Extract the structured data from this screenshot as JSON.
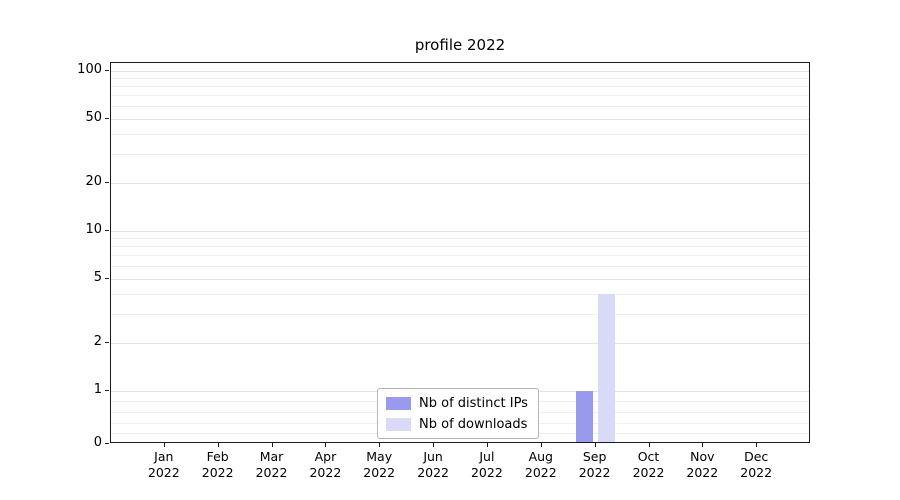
{
  "chart_data": {
    "type": "bar",
    "title": "profile 2022",
    "x_categories": [
      {
        "month": "Jan",
        "year": "2022"
      },
      {
        "month": "Feb",
        "year": "2022"
      },
      {
        "month": "Mar",
        "year": "2022"
      },
      {
        "month": "Apr",
        "year": "2022"
      },
      {
        "month": "May",
        "year": "2022"
      },
      {
        "month": "Jun",
        "year": "2022"
      },
      {
        "month": "Jul",
        "year": "2022"
      },
      {
        "month": "Aug",
        "year": "2022"
      },
      {
        "month": "Sep",
        "year": "2022"
      },
      {
        "month": "Oct",
        "year": "2022"
      },
      {
        "month": "Nov",
        "year": "2022"
      },
      {
        "month": "Dec",
        "year": "2022"
      }
    ],
    "series": [
      {
        "name": "Nb of distinct IPs",
        "color": "#9999ed",
        "values": [
          0,
          0,
          0,
          0,
          0,
          0,
          0,
          0,
          1,
          0,
          0,
          0
        ]
      },
      {
        "name": "Nb of downloads",
        "color": "#d9d9f8",
        "values": [
          0,
          0,
          0,
          0,
          0,
          0,
          0,
          0,
          4,
          0,
          0,
          0
        ]
      }
    ],
    "yticks": [
      0,
      1,
      2,
      5,
      10,
      20,
      50,
      100
    ],
    "yscale": "symlog (linear 0-1, log 1-100)",
    "ylim": [
      0,
      112
    ],
    "xlabel": "",
    "ylabel": "",
    "grid": "horizontal",
    "legend_position": "lower center"
  }
}
